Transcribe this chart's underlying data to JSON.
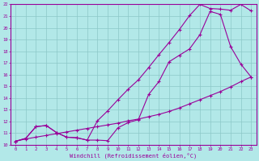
{
  "xlabel": "Windchill (Refroidissement éolien,°C)",
  "bg_color": "#b2e8e8",
  "grid_color": "#8cc8c8",
  "line_color": "#990099",
  "xlim": [
    -0.5,
    23.5
  ],
  "ylim": [
    10,
    22
  ],
  "xticks": [
    0,
    1,
    2,
    3,
    4,
    5,
    6,
    7,
    8,
    9,
    10,
    11,
    12,
    13,
    14,
    15,
    16,
    17,
    18,
    19,
    20,
    21,
    22,
    23
  ],
  "yticks": [
    10,
    11,
    12,
    13,
    14,
    15,
    16,
    17,
    18,
    19,
    20,
    21,
    22
  ],
  "line1_x": [
    0,
    1,
    2,
    3,
    4,
    5,
    6,
    7,
    8,
    9,
    10,
    11,
    12,
    13,
    14,
    15,
    16,
    17,
    18,
    19,
    20,
    21,
    22,
    23
  ],
  "line1_y": [
    10.3,
    10.5,
    10.65,
    10.8,
    10.95,
    11.1,
    11.25,
    11.4,
    11.55,
    11.7,
    11.85,
    12.05,
    12.2,
    12.4,
    12.6,
    12.85,
    13.15,
    13.5,
    13.85,
    14.2,
    14.55,
    14.95,
    15.4,
    15.8
  ],
  "line2_x": [
    0,
    1,
    2,
    3,
    4,
    5,
    6,
    7,
    8,
    9,
    10,
    11,
    12,
    13,
    14,
    15,
    16,
    17,
    18,
    19,
    20,
    21,
    22,
    23
  ],
  "line2_y": [
    10.3,
    10.55,
    11.55,
    11.65,
    11.05,
    10.65,
    10.6,
    10.4,
    10.4,
    10.35,
    11.45,
    11.9,
    12.15,
    14.3,
    15.4,
    17.1,
    17.65,
    18.2,
    19.4,
    21.4,
    21.15,
    18.4,
    16.9,
    15.8
  ],
  "line3_x": [
    0,
    1,
    2,
    3,
    4,
    5,
    6,
    7,
    8,
    9,
    10,
    11,
    12,
    13,
    14,
    15,
    16,
    17,
    18,
    19,
    20,
    21,
    22,
    23
  ],
  "line3_y": [
    10.3,
    10.55,
    11.55,
    11.65,
    11.05,
    10.65,
    10.6,
    10.4,
    12.05,
    12.9,
    13.85,
    14.75,
    15.55,
    16.6,
    17.7,
    18.75,
    19.85,
    21.05,
    22.0,
    21.65,
    21.6,
    21.5,
    22.0,
    21.45
  ]
}
